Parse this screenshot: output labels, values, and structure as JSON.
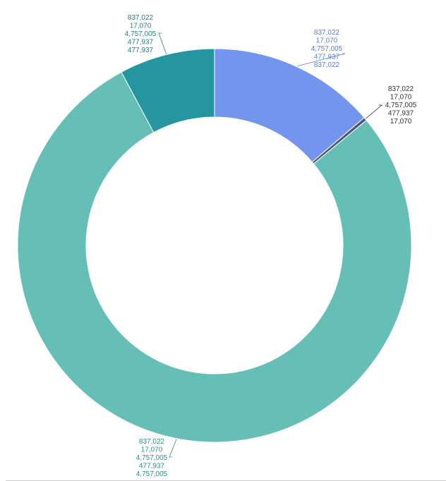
{
  "chart_data": {
    "type": "pie",
    "donut": true,
    "title": "",
    "legend": "none",
    "categories": [
      "837,022",
      "17,070",
      "4,757,005",
      "477,937"
    ],
    "values": [
      837022,
      17070,
      4757005,
      477937
    ],
    "colors": [
      "#7495ee",
      "#4b5a78",
      "#66bfb7",
      "#2596a0"
    ],
    "data_labels": [
      [
        "837,022",
        "17,070",
        "4,757,005",
        "477,937",
        "837,022"
      ],
      [
        "837,022",
        "17,070",
        "4,757,005",
        "477,937",
        "17,070"
      ],
      [
        "837,022",
        "17,070",
        "4,757,005",
        "477,937",
        "4,757,005"
      ],
      [
        "837,022",
        "17,070",
        "4,757,005",
        "477,937",
        "477,937"
      ]
    ]
  }
}
